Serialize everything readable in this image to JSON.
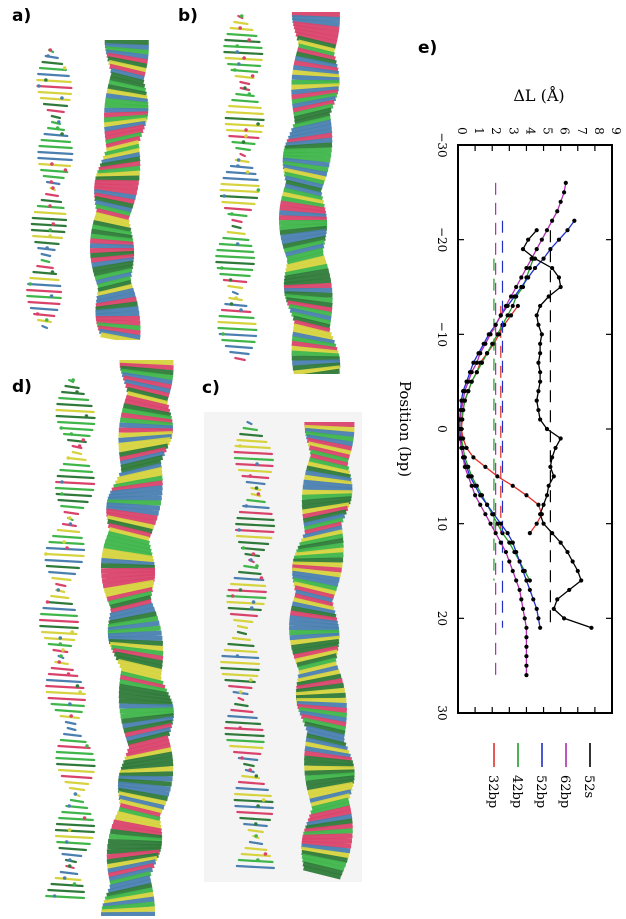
{
  "panels": {
    "a": "a)",
    "b": "b)",
    "c": "c)",
    "d": "d)",
    "e": "e)"
  },
  "base_colors": [
    "#d9436b",
    "#4a7fb0",
    "#d6d33f",
    "#3fb54a",
    "#2f7a3a"
  ],
  "chart_data": {
    "type": "line",
    "title": "",
    "xlabel": "Position (bp)",
    "ylabel": "ΔL (Å)",
    "xlim": [
      -30,
      30
    ],
    "ylim": [
      0,
      9
    ],
    "x_ticks": [
      "−30",
      "−20",
      "−10",
      "0",
      "10",
      "20",
      "30"
    ],
    "y_ticks": [
      "0",
      "1",
      "2",
      "3",
      "4",
      "5",
      "6",
      "7",
      "8",
      "9"
    ],
    "legend_position": "bottom-right",
    "series": [
      {
        "name": "32bp",
        "color": "#e0302a",
        "mean": 2.5,
        "x": [
          -13,
          -12,
          -11,
          -10,
          -9,
          -8,
          -7,
          -6,
          -5,
          -4,
          -3,
          -2,
          -1,
          0,
          1,
          2,
          3,
          4,
          5,
          6,
          7,
          8,
          9,
          10,
          11
        ],
        "y": [
          3.5,
          3.1,
          2.7,
          2.4,
          2.1,
          1.7,
          1.3,
          1.1,
          0.8,
          0.6,
          0.4,
          0.3,
          0.25,
          0.2,
          0.3,
          0.5,
          0.9,
          1.6,
          2.3,
          3.2,
          4.0,
          4.7,
          4.9,
          4.6,
          4.2
        ]
      },
      {
        "name": "42bp",
        "color": "#1f9c2a",
        "mean": 2.1,
        "x": [
          -18,
          -17,
          -16,
          -15,
          -14,
          -13,
          -12,
          -11,
          -10,
          -9,
          -8,
          -7,
          -6,
          -5,
          -4,
          -3,
          -2,
          -1,
          0,
          1,
          2,
          3,
          4,
          5,
          6,
          7,
          8,
          9,
          10,
          11,
          12,
          13,
          14,
          15,
          16
        ],
        "y": [
          4.4,
          4.2,
          4.0,
          3.8,
          3.4,
          3.2,
          2.9,
          2.6,
          2.3,
          2.0,
          1.7,
          1.4,
          1.1,
          0.8,
          0.6,
          0.4,
          0.3,
          0.2,
          0.2,
          0.2,
          0.3,
          0.4,
          0.6,
          0.8,
          1.1,
          1.4,
          1.7,
          2.0,
          2.3,
          2.6,
          3.0,
          3.3,
          3.6,
          3.9,
          4.2
        ]
      },
      {
        "name": "52bp",
        "color": "#1f2fc8",
        "mean": 2.6,
        "x": [
          -22,
          -21,
          -20,
          -19,
          -18,
          -17,
          -16,
          -15,
          -14,
          -13,
          -12,
          -11,
          -10,
          -9,
          -8,
          -7,
          -6,
          -5,
          -4,
          -3,
          -2,
          -1,
          0,
          1,
          2,
          3,
          4,
          5,
          6,
          7,
          8,
          9,
          10,
          11,
          12,
          13,
          14,
          15,
          16,
          17,
          18,
          19,
          20,
          21
        ],
        "y": [
          6.8,
          6.4,
          5.9,
          5.4,
          5.0,
          4.5,
          4.1,
          3.7,
          3.3,
          2.9,
          2.5,
          2.2,
          1.8,
          1.5,
          1.2,
          0.9,
          0.7,
          0.5,
          0.3,
          0.2,
          0.15,
          0.1,
          0.1,
          0.15,
          0.2,
          0.3,
          0.5,
          0.7,
          1.0,
          1.3,
          1.7,
          2.1,
          2.5,
          2.9,
          3.2,
          3.4,
          3.6,
          3.8,
          4.0,
          4.2,
          4.4,
          4.6,
          4.7,
          4.8
        ]
      },
      {
        "name": "62bp",
        "color": "#b02bb0",
        "mean": 2.2,
        "x": [
          -26,
          -25,
          -24,
          -23,
          -22,
          -21,
          -20,
          -19,
          -18,
          -17,
          -16,
          -15,
          -14,
          -13,
          -12,
          -11,
          -10,
          -9,
          -8,
          -7,
          -6,
          -5,
          -4,
          -3,
          -2,
          -1,
          0,
          1,
          2,
          3,
          4,
          5,
          6,
          7,
          8,
          9,
          10,
          11,
          12,
          13,
          14,
          15,
          16,
          17,
          18,
          19,
          20,
          21,
          22,
          23,
          24,
          25,
          26
        ],
        "y": [
          6.3,
          6.2,
          6.0,
          5.8,
          5.5,
          5.2,
          4.9,
          4.6,
          4.3,
          4.0,
          3.7,
          3.4,
          3.1,
          2.8,
          2.5,
          2.2,
          1.9,
          1.6,
          1.3,
          1.1,
          0.8,
          0.6,
          0.4,
          0.3,
          0.2,
          0.1,
          0.1,
          0.1,
          0.2,
          0.3,
          0.4,
          0.6,
          0.8,
          1.0,
          1.3,
          1.6,
          1.9,
          2.2,
          2.5,
          2.8,
          3.0,
          3.2,
          3.4,
          3.6,
          3.7,
          3.8,
          3.9,
          4.0,
          4.0,
          4.0,
          4.0,
          4.0,
          4.0
        ]
      },
      {
        "name": "52s",
        "color": "#000000",
        "mean": 5.4,
        "x": [
          -21,
          -20,
          -19,
          -18,
          -17,
          -16,
          -15,
          -14,
          -13,
          -12,
          -11,
          -10,
          -9,
          -8,
          -7,
          -6,
          -5,
          -4,
          -3,
          -2,
          -1,
          0,
          1,
          2,
          3,
          4,
          5,
          6,
          7,
          8,
          9,
          10,
          11,
          12,
          13,
          14,
          15,
          16,
          17,
          18,
          19,
          20,
          21
        ],
        "y": [
          4.6,
          4.1,
          3.8,
          4.5,
          5.5,
          5.9,
          6.0,
          5.3,
          4.8,
          4.6,
          4.7,
          4.9,
          4.8,
          4.8,
          4.7,
          4.8,
          4.8,
          4.7,
          4.6,
          4.7,
          4.8,
          5.2,
          6.0,
          5.7,
          5.5,
          5.4,
          5.6,
          5.3,
          5.2,
          5.0,
          4.8,
          5.0,
          5.5,
          6.0,
          6.4,
          6.7,
          7.0,
          7.2,
          6.5,
          5.8,
          5.6,
          6.2,
          7.8
        ]
      }
    ]
  }
}
